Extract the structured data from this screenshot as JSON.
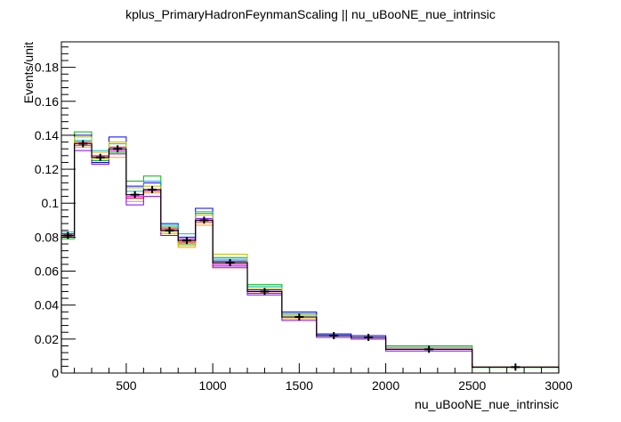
{
  "chart_data": {
    "type": "histogram",
    "title": "kplus_PrimaryHadronFeynmanScaling || nu_uBooNE_nue_intrinsic",
    "xlabel": "nu_uBooNE_nue_intrinsic",
    "ylabel": "Events/unit",
    "xlim": [
      125,
      3000
    ],
    "ylim": [
      0,
      0.195
    ],
    "x_ticks": [
      500,
      1000,
      1500,
      2000,
      2500,
      3000
    ],
    "x_tick_labels": [
      "500",
      "1000",
      "1500",
      "2000",
      "2500",
      "3000"
    ],
    "y_ticks": [
      0,
      0.02,
      0.04,
      0.06,
      0.08,
      0.1,
      0.12,
      0.14,
      0.16,
      0.18
    ],
    "y_tick_labels": [
      "0",
      "0.02",
      "0.04",
      "0.06",
      "0.08",
      "0.1",
      "0.12",
      "0.14",
      "0.16",
      "0.18"
    ],
    "bin_edges": [
      125,
      200,
      300,
      400,
      500,
      600,
      700,
      800,
      900,
      1000,
      1200,
      1400,
      1600,
      1800,
      2000,
      2500,
      3000
    ],
    "central_values": [
      0.081,
      0.135,
      0.127,
      0.132,
      0.105,
      0.108,
      0.084,
      0.078,
      0.09,
      0.065,
      0.048,
      0.033,
      0.022,
      0.021,
      0.014,
      0.0035
    ],
    "data_points": {
      "x": [
        162.5,
        250,
        350,
        450,
        550,
        650,
        750,
        850,
        950,
        1100,
        1300,
        1500,
        1700,
        1900,
        2250,
        2750
      ],
      "y": [
        0.081,
        0.135,
        0.127,
        0.132,
        0.105,
        0.108,
        0.084,
        0.078,
        0.09,
        0.065,
        0.048,
        0.033,
        0.022,
        0.021,
        0.014,
        0.0035
      ],
      "yerr": [
        0.0015,
        0.0015,
        0.0015,
        0.0015,
        0.0015,
        0.0015,
        0.0015,
        0.0015,
        0.0015,
        0.0015,
        0.0012,
        0.001,
        0.001,
        0.001,
        0.001,
        0.0005
      ]
    },
    "universes": [
      {
        "color": "#00b000",
        "values": [
          0.079,
          0.142,
          0.125,
          0.13,
          0.113,
          0.116,
          0.086,
          0.076,
          0.094,
          0.068,
          0.052,
          0.035,
          0.023,
          0.022,
          0.016,
          0.0033
        ]
      },
      {
        "color": "#0000ff",
        "values": [
          0.082,
          0.14,
          0.124,
          0.139,
          0.11,
          0.112,
          0.088,
          0.08,
          0.097,
          0.066,
          0.049,
          0.036,
          0.023,
          0.022,
          0.015,
          0.0035
        ]
      },
      {
        "color": "#ffa500",
        "values": [
          0.08,
          0.133,
          0.13,
          0.127,
          0.101,
          0.106,
          0.082,
          0.074,
          0.087,
          0.064,
          0.047,
          0.032,
          0.021,
          0.02,
          0.014,
          0.0034
        ]
      },
      {
        "color": "#ff0000",
        "values": [
          0.082,
          0.136,
          0.128,
          0.133,
          0.103,
          0.108,
          0.085,
          0.077,
          0.089,
          0.062,
          0.047,
          0.033,
          0.022,
          0.021,
          0.014,
          0.0035
        ]
      },
      {
        "color": "#8000ff",
        "values": [
          0.08,
          0.131,
          0.123,
          0.129,
          0.099,
          0.104,
          0.081,
          0.079,
          0.091,
          0.063,
          0.046,
          0.031,
          0.021,
          0.02,
          0.013,
          0.0034
        ]
      },
      {
        "color": "#00c0c0",
        "values": [
          0.083,
          0.137,
          0.131,
          0.135,
          0.107,
          0.113,
          0.087,
          0.082,
          0.095,
          0.067,
          0.051,
          0.034,
          0.022,
          0.021,
          0.015,
          0.0036
        ]
      },
      {
        "color": "#c0c000",
        "values": [
          0.081,
          0.139,
          0.126,
          0.136,
          0.109,
          0.11,
          0.083,
          0.075,
          0.093,
          0.07,
          0.05,
          0.034,
          0.022,
          0.021,
          0.015,
          0.0036
        ]
      },
      {
        "color": "#ff00ff",
        "values": [
          0.081,
          0.134,
          0.128,
          0.131,
          0.104,
          0.107,
          0.084,
          0.078,
          0.09,
          0.064,
          0.048,
          0.033,
          0.022,
          0.021,
          0.014,
          0.0035
        ]
      }
    ],
    "central_color": "#000000",
    "grid": false,
    "legend": "none"
  }
}
